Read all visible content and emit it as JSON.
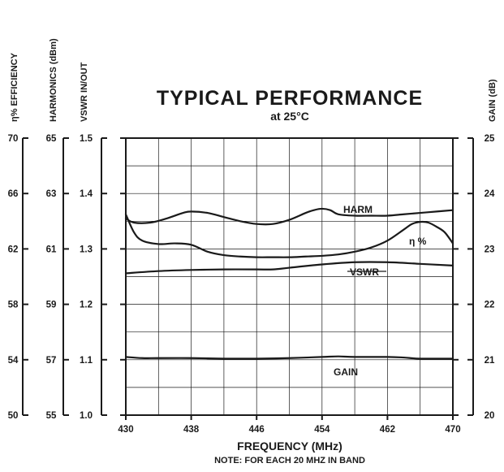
{
  "chart_data": {
    "type": "line",
    "title": "TYPICAL PERFORMANCE",
    "subtitle": "at 25°C",
    "xlabel": "FREQUENCY (MHz)",
    "note": "NOTE: FOR EACH 20 MHZ IN BAND",
    "x_ticks": [
      "430",
      "438",
      "446",
      "454",
      "462",
      "470"
    ],
    "xlim": [
      430,
      470
    ],
    "grid": true,
    "y_axes": [
      {
        "id": "efficiency",
        "label": "η% EFFICIENCY",
        "ticks": [
          "70",
          "66",
          "62",
          "58",
          "54",
          "50"
        ],
        "ylim": [
          50,
          70
        ]
      },
      {
        "id": "harmonics",
        "label": "HARMONICS (dBm)",
        "ticks": [
          "65",
          "63",
          "61",
          "59",
          "57",
          "55"
        ],
        "ylim": [
          55,
          65
        ]
      },
      {
        "id": "vswr",
        "label": "VSWR IN/OUT",
        "ticks": [
          "1.5",
          "1.4",
          "1.3",
          "1.2",
          "1.1",
          "1.0"
        ],
        "ylim": [
          1.0,
          1.5
        ]
      },
      {
        "id": "gain",
        "label": "GAIN (dB)",
        "ticks": [
          "25",
          "24",
          "23",
          "22",
          "21",
          "20"
        ],
        "ylim": [
          20,
          25
        ]
      }
    ],
    "series": [
      {
        "name": "HARM",
        "axis": "harmonics",
        "x": [
          430,
          431,
          433,
          435,
          437,
          438,
          440,
          442,
          444,
          446,
          448,
          450,
          452,
          453,
          454,
          455,
          456,
          458,
          460,
          462,
          464,
          466,
          468,
          470
        ],
        "y": [
          62.1,
          61.95,
          61.95,
          62.1,
          62.3,
          62.35,
          62.3,
          62.15,
          62.0,
          61.9,
          61.9,
          62.05,
          62.3,
          62.4,
          62.45,
          62.4,
          62.25,
          62.2,
          62.2,
          62.2,
          62.25,
          62.3,
          62.35,
          62.4
        ]
      },
      {
        "name": "η %",
        "axis": "efficiency",
        "x": [
          430,
          431,
          432,
          434,
          436,
          438,
          440,
          442,
          444,
          446,
          448,
          450,
          452,
          454,
          456,
          458,
          460,
          462,
          464,
          465,
          466,
          467,
          468,
          469,
          470
        ],
        "y": [
          64.5,
          63.2,
          62.6,
          62.35,
          62.4,
          62.3,
          61.8,
          61.55,
          61.45,
          61.4,
          61.4,
          61.4,
          61.45,
          61.5,
          61.6,
          61.8,
          62.1,
          62.6,
          63.4,
          63.8,
          63.95,
          63.9,
          63.6,
          63.2,
          62.4
        ]
      },
      {
        "name": "VSWR",
        "axis": "vswr",
        "x": [
          430,
          434,
          438,
          442,
          446,
          448,
          450,
          454,
          458,
          462,
          466,
          470
        ],
        "y": [
          1.256,
          1.26,
          1.262,
          1.263,
          1.263,
          1.263,
          1.266,
          1.272,
          1.276,
          1.276,
          1.273,
          1.27
        ]
      },
      {
        "name": "GAIN",
        "axis": "gain",
        "x": [
          430,
          432,
          434,
          438,
          442,
          446,
          450,
          454,
          456,
          458,
          462,
          464,
          466,
          470
        ],
        "y": [
          21.05,
          21.03,
          21.03,
          21.03,
          21.02,
          21.02,
          21.03,
          21.05,
          21.06,
          21.05,
          21.05,
          21.04,
          21.02,
          21.02
        ]
      }
    ]
  }
}
